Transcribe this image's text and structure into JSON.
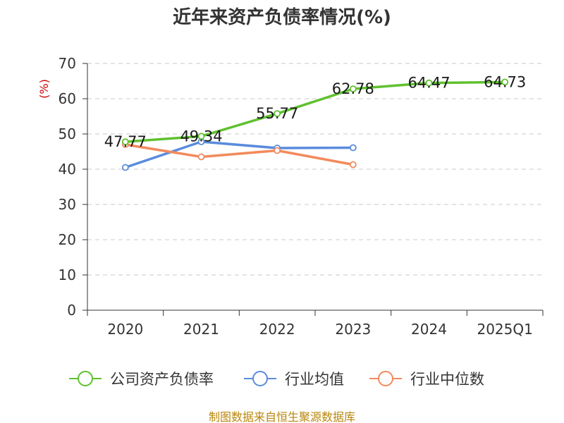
{
  "chart_data": {
    "type": "line",
    "title": "近年来资产负债率情况(%)",
    "ylabel": "(%)",
    "categories": [
      "2020",
      "2021",
      "2022",
      "2023",
      "2024",
      "2025Q1"
    ],
    "ylim": [
      0,
      70
    ],
    "yticks": [
      "0",
      "10",
      "20",
      "30",
      "40",
      "50",
      "60",
      "70"
    ],
    "grid": true,
    "legend_position": "bottom",
    "series": [
      {
        "name": "公司资产负债率",
        "color": "#5fc12f",
        "values": [
          47.77,
          49.34,
          55.77,
          62.78,
          64.47,
          64.73
        ],
        "labels": [
          "47.77",
          "49.34",
          "55.77",
          "62.78",
          "64.47",
          "64.73"
        ]
      },
      {
        "name": "行业均值",
        "color": "#5b8bdc",
        "values": [
          40.5,
          47.8,
          46.0,
          46.1,
          null,
          null
        ]
      },
      {
        "name": "行业中位数",
        "color": "#f28a5c",
        "values": [
          47.0,
          43.5,
          45.3,
          41.3,
          null,
          null
        ]
      }
    ]
  },
  "footer": {
    "source": "制图数据来自恒生聚源数据库"
  }
}
